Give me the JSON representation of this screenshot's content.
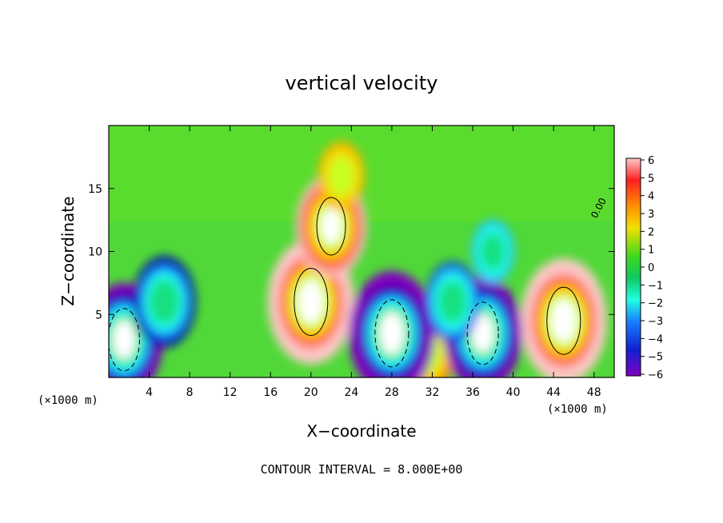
{
  "chart_data": {
    "type": "heatmap",
    "title": "vertical velocity",
    "xlabel": "X−coordinate",
    "ylabel": "Z−coordinate",
    "x_unit_left": "(×1000 m)",
    "x_unit_right": "(×1000 m)",
    "x_ticks": [
      4,
      8,
      12,
      16,
      20,
      24,
      28,
      32,
      36,
      40,
      44,
      48
    ],
    "y_ticks": [
      5,
      10,
      15
    ],
    "xlim": [
      0,
      50
    ],
    "ylim": [
      0,
      20
    ],
    "contour_label": "0.00",
    "colorbar": {
      "ticks": [
        "6",
        "5",
        "4",
        "3",
        "2",
        "1",
        "0",
        "−1",
        "−2",
        "−3",
        "−4",
        "−5",
        "−6"
      ],
      "range": [
        -6,
        6
      ],
      "colors": [
        "#ffc8c8",
        "#f87878",
        "#ff2020",
        "#ff7000",
        "#ffb000",
        "#f0e000",
        "#c8ff20",
        "#60e020",
        "#10c810",
        "#18e080",
        "#20ffe0",
        "#20c8ff",
        "#1880ff",
        "#1020e0",
        "#0000a8",
        "#8000c0"
      ]
    },
    "footnote": "CONTOUR INTERVAL = 8.000E+00",
    "features": [
      {
        "name": "updraft-core",
        "x": 20,
        "z": 6,
        "w": 8
      },
      {
        "name": "updraft-plume",
        "x": 22,
        "z": 12,
        "w": 6
      },
      {
        "name": "updraft-top",
        "x": 23,
        "z": 16,
        "w": 3
      },
      {
        "name": "updraft-right",
        "x": 45,
        "z": 4.5,
        "w": 8
      },
      {
        "name": "updraft-small",
        "x": 31.5,
        "z": 2,
        "w": 4
      },
      {
        "name": "downdraft-left",
        "x": 1.5,
        "z": 3,
        "w": -7
      },
      {
        "name": "downdraft-6",
        "x": 5.5,
        "z": 6,
        "w": -5
      },
      {
        "name": "downdraft-28",
        "x": 28,
        "z": 3.5,
        "w": -8
      },
      {
        "name": "downdraft-37",
        "x": 37,
        "z": 3.5,
        "w": -7
      },
      {
        "name": "downdraft-34",
        "x": 34,
        "z": 6,
        "w": -4
      },
      {
        "name": "downdraft-upper",
        "x": 38,
        "z": 10,
        "w": -2.5
      }
    ]
  }
}
